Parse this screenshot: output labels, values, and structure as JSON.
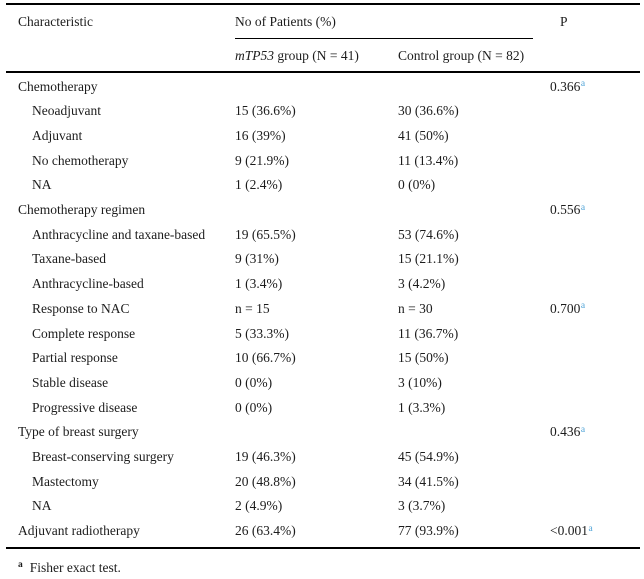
{
  "table": {
    "header": {
      "characteristic": "Characteristic",
      "patients": "No of Patients (%)",
      "p": "P"
    },
    "subheader": {
      "group1_italic": "mTP53",
      "group1_rest": " group (N = 41)",
      "group2": "Control group (N = 82)"
    },
    "rows": [
      {
        "label": "Chemotherapy",
        "indent": 0,
        "v1": "",
        "v2": "",
        "p": "0.366",
        "p_sup": "a"
      },
      {
        "label": "Neoadjuvant",
        "indent": 1,
        "v1": "15 (36.6%)",
        "v2": "30 (36.6%)"
      },
      {
        "label": "Adjuvant",
        "indent": 1,
        "v1": "16 (39%)",
        "v2": "41 (50%)"
      },
      {
        "label": "No chemotherapy",
        "indent": 1,
        "v1": "9 (21.9%)",
        "v2": "11 (13.4%)"
      },
      {
        "label": "NA",
        "indent": 1,
        "v1": "1 (2.4%)",
        "v2": "0 (0%)"
      },
      {
        "label": "Chemotherapy regimen",
        "indent": 0,
        "v1": "",
        "v2": "",
        "p": "0.556",
        "p_sup": "a"
      },
      {
        "label": "Anthracycline and taxane-based",
        "indent": 1,
        "v1": "19 (65.5%)",
        "v2": "53 (74.6%)"
      },
      {
        "label": "Taxane-based",
        "indent": 1,
        "v1": "9 (31%)",
        "v2": "15 (21.1%)"
      },
      {
        "label": "Anthracycline-based",
        "indent": 1,
        "v1": "1 (3.4%)",
        "v2": "3 (4.2%)"
      },
      {
        "label": "Response to NAC",
        "indent": 1,
        "v1": "n = 15",
        "v2": "n = 30",
        "p": "0.700",
        "p_sup": "a"
      },
      {
        "label": "Complete response",
        "indent": 1,
        "v1": "5 (33.3%)",
        "v2": "11 (36.7%)"
      },
      {
        "label": "Partial response",
        "indent": 1,
        "v1": "10 (66.7%)",
        "v2": "15 (50%)"
      },
      {
        "label": "Stable disease",
        "indent": 1,
        "v1": "0 (0%)",
        "v2": "3 (10%)"
      },
      {
        "label": "Progressive disease",
        "indent": 1,
        "v1": "0 (0%)",
        "v2": "1 (3.3%)"
      },
      {
        "label": "Type of breast surgery",
        "indent": 0,
        "v1": "",
        "v2": "",
        "p": "0.436",
        "p_sup": "a"
      },
      {
        "label": "Breast-conserving surgery",
        "indent": 1,
        "v1": "19 (46.3%)",
        "v2": "45 (54.9%)"
      },
      {
        "label": "Mastectomy",
        "indent": 1,
        "v1": "20 (48.8%)",
        "v2": "34 (41.5%)"
      },
      {
        "label": "NA",
        "indent": 1,
        "v1": "2 (4.9%)",
        "v2": "3 (3.7%)"
      },
      {
        "label": "Adjuvant radiotherapy",
        "indent": 0,
        "v1": "26 (63.4%)",
        "v2": "77 (93.9%)",
        "p": "<0.001",
        "p_sup": "a"
      }
    ]
  },
  "footnote": {
    "marker": "a",
    "text": "Fisher exact test."
  },
  "colors": {
    "superscript_blue": "#4ba1d6",
    "text": "#1c1c1c",
    "rule": "#000000"
  }
}
